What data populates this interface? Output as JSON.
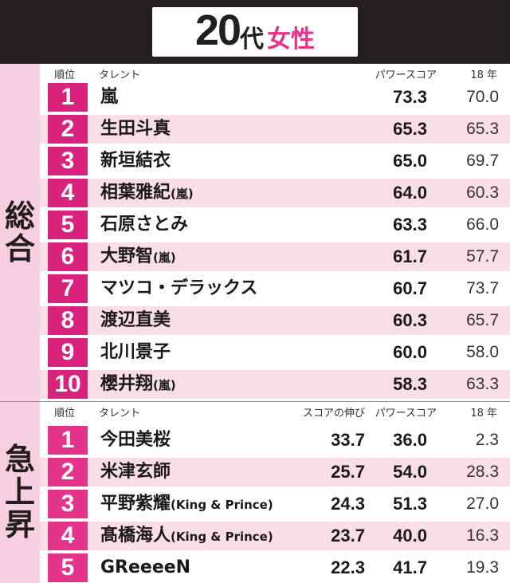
{
  "title": {
    "age": "20",
    "dai": "代",
    "gender": "女性"
  },
  "overall": {
    "label_chars": [
      "総",
      "合"
    ],
    "headers": {
      "rank": "順位",
      "talent": "タレント",
      "power": "パワースコア",
      "prev": "18 年"
    },
    "rows": [
      {
        "rank": "1",
        "name": "嵐",
        "sub": "",
        "power": "73.3",
        "prev": "70.0"
      },
      {
        "rank": "2",
        "name": "生田斗真",
        "sub": "",
        "power": "65.3",
        "prev": "65.3"
      },
      {
        "rank": "3",
        "name": "新垣結衣",
        "sub": "",
        "power": "65.0",
        "prev": "69.7"
      },
      {
        "rank": "4",
        "name": "相葉雅紀",
        "sub": "(嵐)",
        "power": "64.0",
        "prev": "60.3"
      },
      {
        "rank": "5",
        "name": "石原さとみ",
        "sub": "",
        "power": "63.3",
        "prev": "66.0"
      },
      {
        "rank": "6",
        "name": "大野智",
        "sub": "(嵐)",
        "power": "61.7",
        "prev": "57.7"
      },
      {
        "rank": "7",
        "name": "マツコ・デラックス",
        "sub": "",
        "power": "60.7",
        "prev": "73.7"
      },
      {
        "rank": "8",
        "name": "渡辺直美",
        "sub": "",
        "power": "60.3",
        "prev": "65.7"
      },
      {
        "rank": "9",
        "name": "北川景子",
        "sub": "",
        "power": "60.0",
        "prev": "58.0"
      },
      {
        "rank": "10",
        "name": "櫻井翔",
        "sub": "(嵐)",
        "power": "58.3",
        "prev": "63.3"
      }
    ]
  },
  "rising": {
    "label_chars": [
      "急",
      "上",
      "昇"
    ],
    "headers": {
      "rank": "順位",
      "talent": "タレント",
      "growth": "スコアの伸び",
      "power": "パワースコア",
      "prev": "18 年"
    },
    "rows": [
      {
        "rank": "1",
        "name": "今田美桜",
        "sub": "",
        "growth": "33.7",
        "power": "36.0",
        "prev": "2.3"
      },
      {
        "rank": "2",
        "name": "米津玄師",
        "sub": "",
        "growth": "25.7",
        "power": "54.0",
        "prev": "28.3"
      },
      {
        "rank": "3",
        "name": "平野紫耀",
        "sub": "(King & Prince)",
        "growth": "24.3",
        "power": "51.3",
        "prev": "27.0"
      },
      {
        "rank": "4",
        "name": "髙橋海人",
        "sub": "(King & Prince)",
        "growth": "23.7",
        "power": "40.0",
        "prev": "16.3"
      },
      {
        "rank": "5",
        "name": "GReeeeN",
        "sub": "",
        "growth": "22.3",
        "power": "41.7",
        "prev": "19.3"
      }
    ]
  }
}
